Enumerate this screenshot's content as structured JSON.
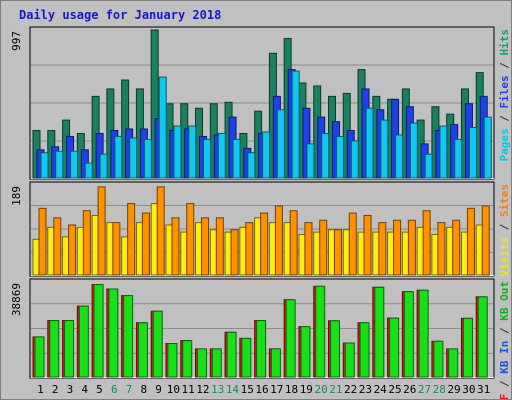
{
  "chart_data": {
    "type": "bar",
    "title": "Daily usage for January 2018",
    "categories": [
      "1",
      "2",
      "3",
      "4",
      "5",
      "6",
      "7",
      "8",
      "9",
      "10",
      "11",
      "12",
      "13",
      "14",
      "15",
      "16",
      "17",
      "18",
      "19",
      "20",
      "21",
      "22",
      "23",
      "24",
      "25",
      "26",
      "27",
      "28",
      "29",
      "30",
      "31"
    ],
    "weekend_days": [
      6,
      7,
      13,
      14,
      20,
      21,
      27,
      28
    ],
    "panels": [
      {
        "name": "pages_files_hits",
        "max_label": "997",
        "ylim": [
          0,
          997
        ],
        "right_labels": [
          {
            "text": "Pages",
            "color": "#00c8e8"
          },
          {
            "text": " / ",
            "color": "#333333"
          },
          {
            "text": "Files",
            "color": "#2040e8"
          },
          {
            "text": " / ",
            "color": "#333333"
          },
          {
            "text": "Hits",
            "color": "#18a070"
          }
        ],
        "series": [
          {
            "name": "Hits",
            "color": "#1a8060",
            "values": [
              320,
              320,
              390,
              300,
              550,
              600,
              660,
              600,
              997,
              500,
              500,
              470,
              500,
              510,
              300,
              450,
              840,
              940,
              640,
              620,
              550,
              570,
              730,
              550,
              530,
              600,
              390,
              480,
              430,
              600,
              710
            ]
          },
          {
            "name": "Files",
            "color": "#1f40e6",
            "values": [
              190,
              210,
              280,
              190,
              300,
              320,
              330,
              330,
              400,
              320,
              330,
              280,
              290,
              410,
              200,
              300,
              550,
              730,
              470,
              410,
              380,
              320,
              600,
              460,
              530,
              480,
              230,
              320,
              360,
              500,
              550
            ]
          },
          {
            "name": "Pages",
            "color": "#10c8f0",
            "values": [
              170,
              180,
              180,
              100,
              160,
              280,
              270,
              260,
              680,
              350,
              350,
              260,
              300,
              260,
              170,
              310,
              460,
              720,
              230,
              300,
              280,
              250,
              470,
              390,
              290,
              370,
              160,
              350,
              260,
              340,
              410
            ]
          }
        ]
      },
      {
        "name": "visits_sites",
        "max_label": "189",
        "ylim": [
          0,
          189
        ],
        "right_labels": [
          {
            "text": "Visits",
            "color": "#e8e828"
          },
          {
            "text": " / ",
            "color": "#333333"
          },
          {
            "text": "Sites",
            "color": "#f08010"
          }
        ],
        "series": [
          {
            "name": "Visits",
            "color": "#ffec10",
            "values": [
              75,
              100,
              80,
              100,
              125,
              110,
              80,
              110,
              150,
              105,
              90,
              110,
              95,
              90,
              100,
              120,
              110,
              110,
              85,
              90,
              95,
              95,
              90,
              90,
              90,
              90,
              100,
              85,
              100,
              90,
              105
            ]
          },
          {
            "name": "Sites",
            "color": "#ff9000",
            "values": [
              140,
              120,
              105,
              135,
              185,
              110,
              150,
              130,
              185,
              120,
              150,
              120,
              120,
              95,
              110,
              130,
              145,
              135,
              110,
              115,
              95,
              130,
              125,
              110,
              115,
              115,
              135,
              110,
              115,
              140,
              145
            ]
          }
        ]
      },
      {
        "name": "kb",
        "max_label": "38869",
        "ylim": [
          0,
          38869
        ],
        "right_labels": [
          {
            "text": "KB F",
            "color": "#e01818"
          },
          {
            "text": " / ",
            "color": "#333333"
          },
          {
            "text": "KB In",
            "color": "#1858d8"
          },
          {
            "text": " / ",
            "color": "#333333"
          },
          {
            "text": "KB Out",
            "color": "#18b018"
          }
        ],
        "series": [
          {
            "name": "KB F",
            "color": "#e01818",
            "values": [
              16400,
              23100,
              23100,
              29000,
              37800,
              36000,
              33300,
              22200,
              26900,
              13700,
              14900,
              11500,
              11500,
              18300,
              15800,
              23100,
              11500,
              31600,
              20600,
              37100,
              23000,
              13900,
              22200,
              36700,
              24100,
              34900,
              35500,
              14600,
              11500,
              24000,
              32800
            ]
          },
          {
            "name": "KB Out",
            "color": "#18e018",
            "values": [
              16400,
              23100,
              23100,
              29000,
              37800,
              36000,
              33300,
              22200,
              26900,
              13700,
              14900,
              11500,
              11500,
              18300,
              15800,
              23100,
              11500,
              31600,
              20600,
              37100,
              23000,
              13900,
              22200,
              36700,
              24100,
              34900,
              35500,
              14600,
              11500,
              24000,
              32800
            ]
          }
        ]
      }
    ]
  }
}
